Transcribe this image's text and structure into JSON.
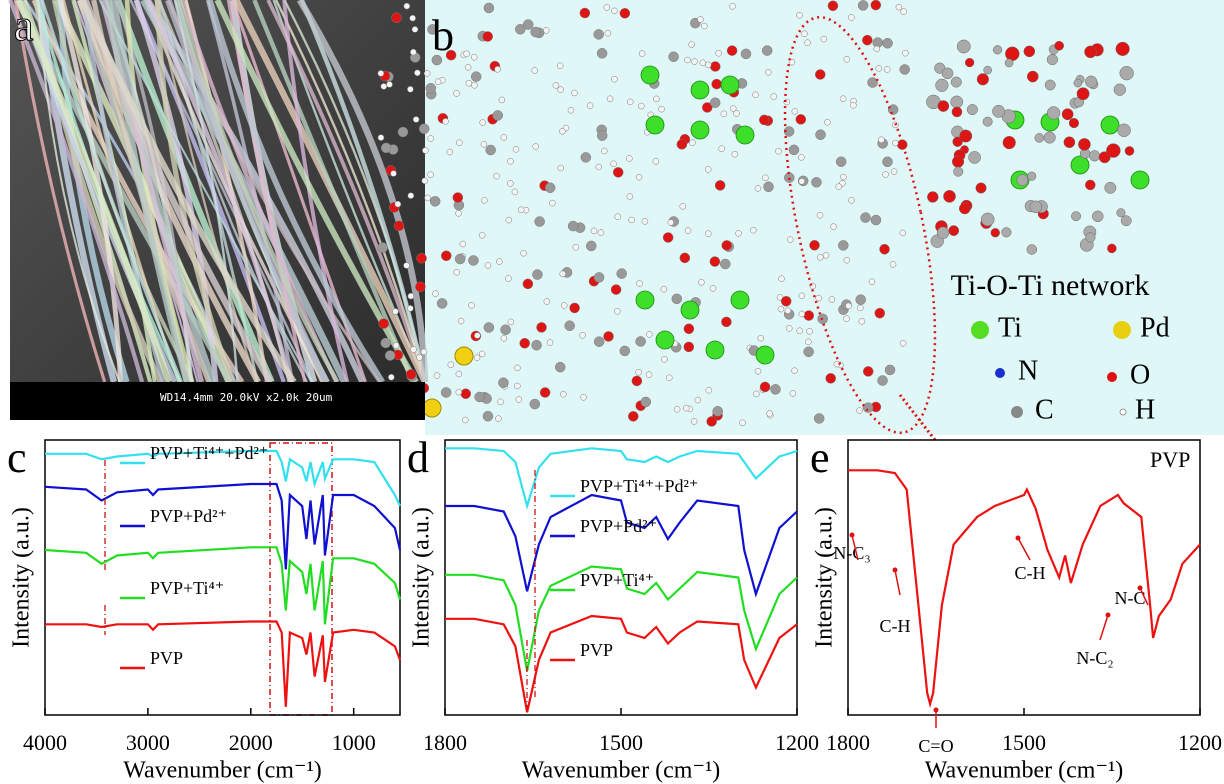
{
  "panels": {
    "a": {
      "label": "a",
      "scale_text": "WD14.4mm 20.0kV x2.0k  20um"
    },
    "b": {
      "label": "b",
      "network": "Ti-O-Ti network",
      "legend": [
        "Ti",
        "Pd",
        "N",
        "O",
        "C",
        "H"
      ]
    }
  },
  "chart_data": [
    {
      "type": "line",
      "panel": "c",
      "xlabel": "Wavenumber (cm⁻¹)",
      "ylabel": "Intensity (a.u.)",
      "xlim": [
        4000,
        550
      ],
      "ylim": [
        0,
        100
      ],
      "xticks": [
        4000,
        3000,
        2000,
        1000
      ],
      "x": [
        4000,
        3600,
        3450,
        3300,
        3000,
        2950,
        2900,
        2000,
        1750,
        1700,
        1660,
        1620,
        1500,
        1460,
        1420,
        1380,
        1300,
        1280,
        1200,
        1000,
        800,
        600,
        550
      ],
      "series": [
        {
          "name": "PVP+Ti⁴⁺+Pd²⁺",
          "color": "#33e0f0",
          "values": [
            95,
            95,
            93,
            94,
            95,
            94,
            95,
            96,
            96,
            92,
            85,
            93,
            90,
            85,
            92,
            84,
            92,
            86,
            93,
            93,
            92,
            80,
            76
          ]
        },
        {
          "name": "PVP+Pd²⁺",
          "color": "#1010d0",
          "values": [
            83,
            82,
            78,
            81,
            82,
            80,
            82,
            84,
            84,
            78,
            53,
            80,
            76,
            64,
            78,
            62,
            80,
            58,
            80,
            80,
            76,
            68,
            60
          ]
        },
        {
          "name": "PVP+Ti⁴⁺",
          "color": "#22dd22",
          "values": [
            60,
            59,
            55,
            58,
            59,
            57,
            59,
            61,
            61,
            55,
            38,
            56,
            52,
            44,
            55,
            38,
            56,
            33,
            57,
            57,
            55,
            48,
            42
          ]
        },
        {
          "name": "PVP",
          "color": "#ee1111",
          "values": [
            33,
            33,
            32,
            33,
            33,
            31,
            33,
            34,
            34,
            30,
            3,
            30,
            28,
            22,
            30,
            14,
            29,
            12,
            30,
            31,
            30,
            25,
            20
          ]
        }
      ]
    },
    {
      "type": "line",
      "panel": "d",
      "xlabel": "Wavenumber (cm⁻¹)",
      "ylabel": "Intensity (a.u.)",
      "xlim": [
        1800,
        1200
      ],
      "ylim": [
        0,
        100
      ],
      "xticks": [
        1800,
        1500,
        1200
      ],
      "x": [
        1800,
        1750,
        1700,
        1680,
        1660,
        1640,
        1620,
        1550,
        1500,
        1490,
        1460,
        1440,
        1420,
        1400,
        1370,
        1300,
        1290,
        1270,
        1230,
        1200
      ],
      "series": [
        {
          "name": "PVP+Ti⁴⁺+Pd²⁺",
          "color": "#33e0f0",
          "values": [
            97,
            97,
            96,
            92,
            76,
            90,
            95,
            97,
            96,
            93,
            92,
            94,
            92,
            94,
            96,
            95,
            92,
            86,
            94,
            96
          ]
        },
        {
          "name": "PVP+Pd²⁺",
          "color": "#1010d0",
          "values": [
            76,
            76,
            74,
            65,
            45,
            62,
            72,
            80,
            78,
            70,
            68,
            72,
            64,
            70,
            78,
            76,
            60,
            44,
            68,
            74
          ]
        },
        {
          "name": "PVP+Ti⁴⁺",
          "color": "#22dd22",
          "values": [
            51,
            51,
            49,
            40,
            16,
            38,
            47,
            54,
            53,
            46,
            44,
            48,
            42,
            46,
            52,
            50,
            38,
            24,
            44,
            50
          ]
        },
        {
          "name": "PVP",
          "color": "#ee1111",
          "values": [
            35,
            35,
            33,
            25,
            1,
            20,
            30,
            36,
            35,
            30,
            28,
            32,
            26,
            30,
            34,
            33,
            20,
            10,
            28,
            33
          ]
        }
      ]
    },
    {
      "type": "line",
      "panel": "e",
      "xlabel": "Wavenumber (cm⁻¹)",
      "ylabel": "Intensity (a.u.)",
      "xlim": [
        1800,
        1200
      ],
      "ylim": [
        0,
        100
      ],
      "xticks": [
        1800,
        1500,
        1200
      ],
      "x": [
        1800,
        1750,
        1720,
        1700,
        1680,
        1665,
        1660,
        1655,
        1640,
        1620,
        1580,
        1550,
        1500,
        1495,
        1480,
        1460,
        1440,
        1430,
        1420,
        1400,
        1370,
        1340,
        1330,
        1300,
        1285,
        1280,
        1270,
        1250,
        1230,
        1200
      ],
      "series": [
        {
          "name": "PVP",
          "color": "#ee1111",
          "values": [
            89,
            89,
            88,
            82,
            40,
            8,
            4,
            8,
            40,
            62,
            72,
            76,
            80,
            82,
            75,
            60,
            50,
            58,
            48,
            62,
            76,
            80,
            77,
            72,
            40,
            28,
            36,
            42,
            55,
            62
          ]
        }
      ],
      "annotations": [
        "C=O",
        "N-C₃",
        "C-H",
        "C-H",
        "N-C",
        "N-C₂"
      ]
    }
  ]
}
